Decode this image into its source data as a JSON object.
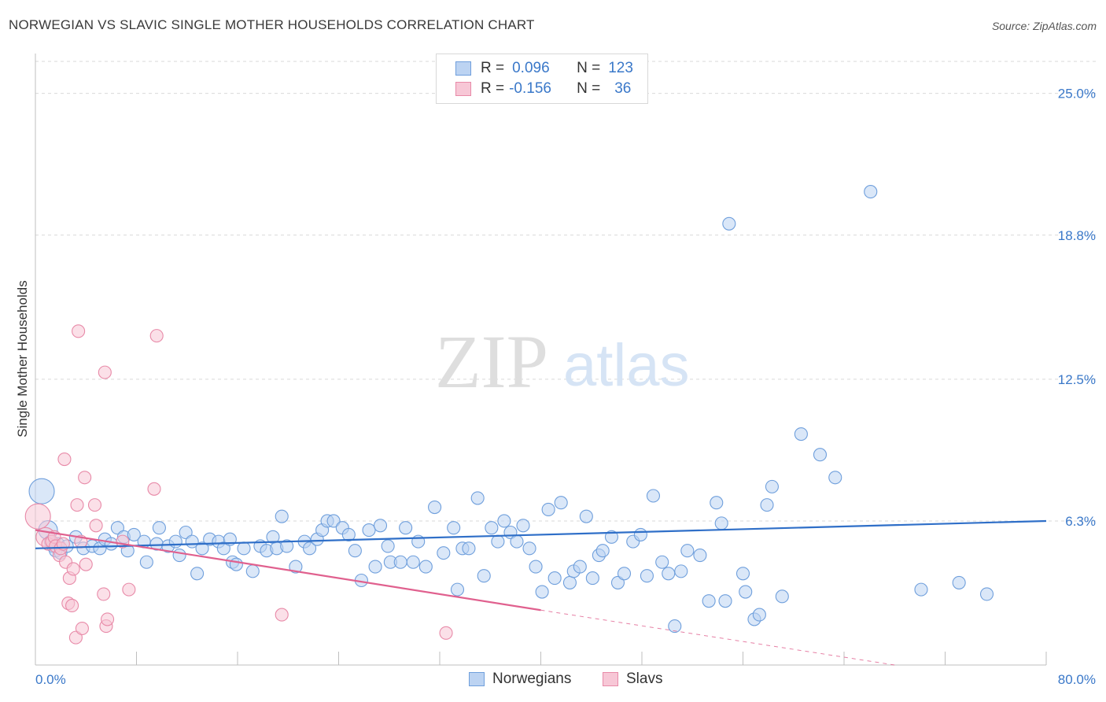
{
  "header": {
    "title": "NORWEGIAN VS SLAVIC SINGLE MOTHER HOUSEHOLDS CORRELATION CHART",
    "source": "Source: ZipAtlas.com"
  },
  "legend": {
    "rows": [
      {
        "r_label": "R =",
        "r_value": "0.096",
        "n_label": "N =",
        "n_value": "123"
      },
      {
        "r_label": "R =",
        "r_value": "-0.156",
        "n_label": "N =",
        "n_value": "36"
      }
    ]
  },
  "watermark": {
    "zip": "ZIP",
    "atlas": "atlas"
  },
  "colors": {
    "norwegians": "#6f9fdc",
    "norwegians_fill": "#bcd3f2",
    "norwegians_line": "#2f6fc8",
    "slavs": "#e88aa8",
    "slavs_fill": "#f7c7d6",
    "slavs_line": "#e0608e",
    "axis_label": "#3a78c9",
    "grid": "#d9d9d9"
  },
  "chart_data": {
    "type": "scatter",
    "title": "NORWEGIAN VS SLAVIC SINGLE MOTHER HOUSEHOLDS CORRELATION CHART",
    "xlabel": "",
    "ylabel": "Single Mother Households",
    "xlim": [
      0,
      80
    ],
    "ylim": [
      0,
      26.4
    ],
    "x_tick_labels": [
      "0.0%",
      "80.0%"
    ],
    "y_ticks": [
      6.3,
      12.5,
      18.8,
      25.0
    ],
    "y_tick_labels": [
      "6.3%",
      "12.5%",
      "18.8%",
      "25.0%"
    ],
    "grid": "horizontal dashed",
    "legend_position": "bottom-center",
    "series": [
      {
        "name": "Norwegians",
        "trend": {
          "x0": 0,
          "y0": 5.1,
          "x1": 80,
          "y1": 6.3
        },
        "points": [
          [
            0.5,
            7.6,
            "big"
          ],
          [
            1.0,
            5.9,
            "mid"
          ],
          [
            1.2,
            5.4
          ],
          [
            1.4,
            5.2
          ],
          [
            1.6,
            5.0
          ],
          [
            1.8,
            5.3
          ],
          [
            2.0,
            4.9
          ],
          [
            2.5,
            5.2
          ],
          [
            3.2,
            5.6
          ],
          [
            3.8,
            5.1
          ],
          [
            4.5,
            5.2
          ],
          [
            5.1,
            5.1
          ],
          [
            5.5,
            5.5
          ],
          [
            6.0,
            5.3
          ],
          [
            6.5,
            6.0
          ],
          [
            7.0,
            5.6
          ],
          [
            7.3,
            5.0
          ],
          [
            7.8,
            5.7
          ],
          [
            8.6,
            5.4
          ],
          [
            8.8,
            4.5
          ],
          [
            9.6,
            5.3
          ],
          [
            9.8,
            6.0
          ],
          [
            10.5,
            5.2
          ],
          [
            11.1,
            5.4
          ],
          [
            11.4,
            4.8
          ],
          [
            11.9,
            5.8
          ],
          [
            12.4,
            5.4
          ],
          [
            12.8,
            4.0
          ],
          [
            13.2,
            5.1
          ],
          [
            13.8,
            5.5
          ],
          [
            14.5,
            5.4
          ],
          [
            14.9,
            5.1
          ],
          [
            15.4,
            5.5
          ],
          [
            15.6,
            4.5
          ],
          [
            15.9,
            4.4
          ],
          [
            16.5,
            5.1
          ],
          [
            17.2,
            4.1
          ],
          [
            17.8,
            5.2
          ],
          [
            18.3,
            5.0
          ],
          [
            18.8,
            5.6
          ],
          [
            19.1,
            5.1
          ],
          [
            19.5,
            6.5
          ],
          [
            19.9,
            5.2
          ],
          [
            20.6,
            4.3
          ],
          [
            21.3,
            5.4
          ],
          [
            21.7,
            5.1
          ],
          [
            22.3,
            5.5
          ],
          [
            22.7,
            5.9
          ],
          [
            23.1,
            6.3
          ],
          [
            23.6,
            6.3
          ],
          [
            24.3,
            6.0
          ],
          [
            24.8,
            5.7
          ],
          [
            25.3,
            5.0
          ],
          [
            25.8,
            3.7
          ],
          [
            26.4,
            5.9
          ],
          [
            26.9,
            4.3
          ],
          [
            27.3,
            6.1
          ],
          [
            27.9,
            5.2
          ],
          [
            28.1,
            4.5
          ],
          [
            28.9,
            4.5
          ],
          [
            29.3,
            6.0
          ],
          [
            29.9,
            4.5
          ],
          [
            30.3,
            5.4
          ],
          [
            30.9,
            4.3
          ],
          [
            31.6,
            6.9
          ],
          [
            32.3,
            4.9
          ],
          [
            33.1,
            6.0
          ],
          [
            33.4,
            3.3
          ],
          [
            33.8,
            5.1
          ],
          [
            34.3,
            5.1
          ],
          [
            35.0,
            7.3
          ],
          [
            35.5,
            3.9
          ],
          [
            36.1,
            6.0
          ],
          [
            36.6,
            5.4
          ],
          [
            37.1,
            6.3
          ],
          [
            37.6,
            5.8
          ],
          [
            38.1,
            5.4
          ],
          [
            38.6,
            6.1
          ],
          [
            39.1,
            5.1
          ],
          [
            39.6,
            4.3
          ],
          [
            40.1,
            3.2
          ],
          [
            40.6,
            6.8
          ],
          [
            41.1,
            3.8
          ],
          [
            41.6,
            7.1
          ],
          [
            42.3,
            3.6
          ],
          [
            42.6,
            4.1
          ],
          [
            43.1,
            4.3
          ],
          [
            43.6,
            6.5
          ],
          [
            44.1,
            3.8
          ],
          [
            44.6,
            4.8
          ],
          [
            44.9,
            5.0
          ],
          [
            45.6,
            5.6
          ],
          [
            46.1,
            3.6
          ],
          [
            46.6,
            4.0
          ],
          [
            47.3,
            5.4
          ],
          [
            47.9,
            5.7
          ],
          [
            48.4,
            3.9
          ],
          [
            48.9,
            7.4
          ],
          [
            49.6,
            4.5
          ],
          [
            50.1,
            4.0
          ],
          [
            50.6,
            1.7
          ],
          [
            51.1,
            4.1
          ],
          [
            51.6,
            5.0
          ],
          [
            52.6,
            4.8
          ],
          [
            53.3,
            2.8
          ],
          [
            53.9,
            7.1
          ],
          [
            54.3,
            6.2
          ],
          [
            54.6,
            2.8
          ],
          [
            54.9,
            19.3
          ],
          [
            56.0,
            4.0
          ],
          [
            56.2,
            3.2
          ],
          [
            56.9,
            2.0
          ],
          [
            57.3,
            2.2
          ],
          [
            57.9,
            7.0
          ],
          [
            58.3,
            7.8
          ],
          [
            59.1,
            3.0
          ],
          [
            60.6,
            10.1
          ],
          [
            62.1,
            9.2
          ],
          [
            63.3,
            8.2
          ],
          [
            66.1,
            20.7
          ],
          [
            70.1,
            3.3
          ],
          [
            73.1,
            3.6
          ],
          [
            75.3,
            3.1
          ]
        ]
      },
      {
        "name": "Slavs",
        "trend": {
          "x0": 0,
          "y0": 5.9,
          "x1": 40,
          "y1": 2.4,
          "dashed_to": {
            "x": 68,
            "y": 0
          }
        },
        "points": [
          [
            0.2,
            6.5,
            "big"
          ],
          [
            0.8,
            5.6,
            "mid"
          ],
          [
            1.0,
            5.3
          ],
          [
            1.3,
            5.4
          ],
          [
            1.5,
            5.6
          ],
          [
            1.6,
            5.2
          ],
          [
            1.9,
            4.8
          ],
          [
            2.0,
            5.1
          ],
          [
            2.2,
            5.3
          ],
          [
            2.3,
            9.0
          ],
          [
            2.4,
            4.5
          ],
          [
            2.6,
            2.7
          ],
          [
            2.7,
            3.8
          ],
          [
            2.9,
            2.6
          ],
          [
            3.0,
            4.2
          ],
          [
            3.2,
            1.2
          ],
          [
            3.3,
            7.0
          ],
          [
            3.4,
            14.6
          ],
          [
            3.6,
            5.4
          ],
          [
            3.9,
            8.2
          ],
          [
            3.7,
            1.6
          ],
          [
            4.0,
            4.4
          ],
          [
            4.7,
            7.0
          ],
          [
            4.8,
            6.1
          ],
          [
            5.4,
            3.1
          ],
          [
            5.5,
            12.8
          ],
          [
            5.6,
            1.7
          ],
          [
            5.7,
            2.0
          ],
          [
            6.9,
            5.4
          ],
          [
            7.4,
            3.3
          ],
          [
            9.4,
            7.7
          ],
          [
            9.6,
            14.4
          ],
          [
            19.5,
            2.2
          ],
          [
            32.5,
            1.4
          ]
        ]
      }
    ]
  },
  "bottom_legend": {
    "items": [
      "Norwegians",
      "Slavs"
    ]
  }
}
